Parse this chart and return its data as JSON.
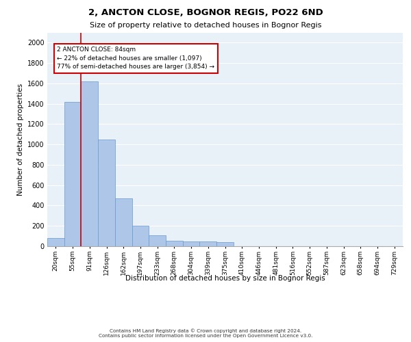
{
  "title1": "2, ANCTON CLOSE, BOGNOR REGIS, PO22 6ND",
  "title2": "Size of property relative to detached houses in Bognor Regis",
  "xlabel": "Distribution of detached houses by size in Bognor Regis",
  "ylabel": "Number of detached properties",
  "categories": [
    "20sqm",
    "55sqm",
    "91sqm",
    "126sqm",
    "162sqm",
    "197sqm",
    "233sqm",
    "268sqm",
    "304sqm",
    "339sqm",
    "375sqm",
    "410sqm",
    "446sqm",
    "481sqm",
    "516sqm",
    "552sqm",
    "587sqm",
    "623sqm",
    "658sqm",
    "694sqm",
    "729sqm"
  ],
  "values": [
    80,
    1420,
    1620,
    1050,
    470,
    200,
    110,
    55,
    45,
    45,
    40,
    0,
    0,
    0,
    0,
    0,
    0,
    0,
    0,
    0,
    0
  ],
  "bar_color": "#aec6e8",
  "bar_edge_color": "#6699cc",
  "redline_x": 1.5,
  "annotation_text": "2 ANCTON CLOSE: 84sqm\n← 22% of detached houses are smaller (1,097)\n77% of semi-detached houses are larger (3,854) →",
  "annotation_box_color": "#ffffff",
  "annotation_box_edge_color": "#cc0000",
  "ylim": [
    0,
    2100
  ],
  "yticks": [
    0,
    200,
    400,
    600,
    800,
    1000,
    1200,
    1400,
    1600,
    1800,
    2000
  ],
  "bg_color": "#e8f0f8",
  "footer_line1": "Contains HM Land Registry data © Crown copyright and database right 2024.",
  "footer_line2": "Contains public sector information licensed under the Open Government Licence v3.0."
}
